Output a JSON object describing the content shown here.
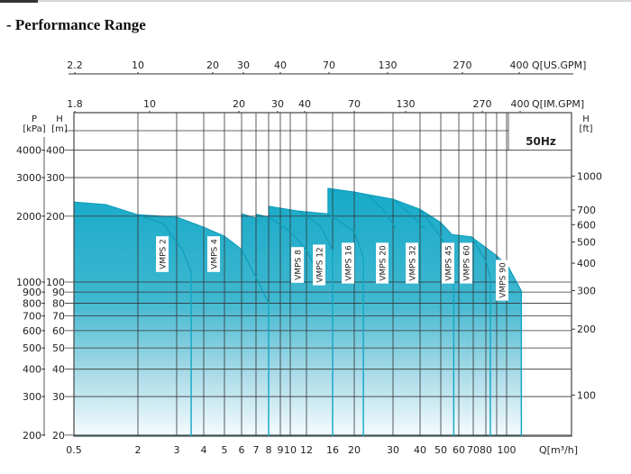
{
  "page": {
    "title": "- Performance Range"
  },
  "chart_data": {
    "type": "area",
    "title": "",
    "frequency_label": "50Hz",
    "x_axis": {
      "label": "Q[m³/h]",
      "scale": "log",
      "ticks": [
        0.5,
        2,
        3,
        4,
        5,
        6,
        7,
        8,
        9,
        10,
        12,
        16,
        20,
        30,
        40,
        50,
        60,
        70,
        80,
        100
      ],
      "grid_lines": [
        0.5,
        2,
        3,
        4,
        5,
        6,
        7,
        8,
        9,
        10,
        12,
        16,
        20,
        30,
        40,
        50,
        60,
        70,
        80,
        90,
        100
      ]
    },
    "x_axis_top_us": {
      "label": "Q[US.GPM]",
      "ticks": [
        "2.2",
        "10",
        "20",
        "30",
        "40",
        "70",
        "130",
        "270",
        "400"
      ]
    },
    "x_axis_top_im": {
      "label": "Q[IM.GPM]",
      "ticks": [
        "1.8",
        "10",
        "20",
        "30",
        "40",
        "70",
        "130",
        "270",
        "400"
      ]
    },
    "y_axis_h": {
      "label_top": "H",
      "label_unit": "[m]",
      "scale": "log",
      "ticks": [
        400,
        300,
        200,
        100,
        90,
        80,
        70,
        60,
        50,
        40,
        30,
        20
      ]
    },
    "y_axis_p": {
      "label_top": "P",
      "label_unit": "[kPa]",
      "ticks": [
        4000,
        3000,
        2000,
        1000,
        900,
        800,
        700,
        600,
        500,
        400,
        300,
        200
      ]
    },
    "y_axis_ft": {
      "label_top": "H",
      "label_unit": "[ft]",
      "ticks": [
        1000,
        700,
        600,
        500,
        400,
        300,
        200,
        100
      ]
    },
    "grid": true,
    "colors": {
      "fill_top": "#16aac8",
      "fill_bottom": "#f4fbfd",
      "curve": "#0e9ab9",
      "grid": "#333333"
    },
    "envelope": [
      [
        0.5,
        232
      ],
      [
        1,
        226
      ],
      [
        2,
        203
      ],
      [
        3,
        198
      ],
      [
        4,
        178
      ],
      [
        5,
        162
      ],
      [
        6,
        141
      ],
      [
        6,
        205
      ],
      [
        7,
        196
      ],
      [
        7,
        204
      ],
      [
        8,
        198
      ],
      [
        8,
        222
      ],
      [
        11,
        211
      ],
      [
        15.2,
        205
      ],
      [
        15.2,
        268
      ],
      [
        20,
        258
      ],
      [
        23,
        251
      ],
      [
        30,
        239
      ],
      [
        40,
        215
      ],
      [
        50,
        187
      ],
      [
        56,
        165
      ],
      [
        68.5,
        161
      ],
      [
        89,
        133
      ],
      [
        101,
        119
      ],
      [
        117,
        91
      ]
    ],
    "series": [
      {
        "name": "VMPS 2",
        "tail": [
          [
            2,
            203
          ],
          [
            2.6,
            185
          ],
          [
            3.2,
            140
          ],
          [
            3.5,
            111
          ]
        ],
        "max_q": 3.5
      },
      {
        "name": "VMPS 4",
        "tail": [
          [
            6,
            141
          ],
          [
            7,
            105
          ],
          [
            8,
            80
          ]
        ],
        "max_q": 8
      },
      {
        "name": "VMPS 8",
        "tail": [
          [
            8,
            198
          ],
          [
            10,
            170
          ],
          [
            12,
            140
          ],
          [
            13,
            120
          ]
        ],
        "max_q": 13
      },
      {
        "name": "VMPS 12",
        "tail": [
          [
            11,
            211
          ],
          [
            14,
            180
          ],
          [
            16,
            140
          ]
        ],
        "max_q": 16
      },
      {
        "name": "VMPS 16",
        "tail": [
          [
            15.2,
            205
          ],
          [
            20,
            170
          ],
          [
            22,
            130
          ]
        ],
        "max_q": 22
      },
      {
        "name": "VMPS 20",
        "tail": [
          [
            23,
            251
          ],
          [
            27,
            215
          ],
          [
            31,
            175
          ]
        ],
        "max_q": 31
      },
      {
        "name": "VMPS 32",
        "tail": [
          [
            30,
            239
          ],
          [
            36,
            205
          ],
          [
            42,
            175
          ]
        ],
        "max_q": 42
      },
      {
        "name": "VMPS 45",
        "tail": [
          [
            40,
            215
          ],
          [
            50,
            160
          ],
          [
            57,
            120
          ]
        ],
        "max_q": 57
      },
      {
        "name": "VMPS 60",
        "tail": [
          [
            68.5,
            161
          ],
          [
            80,
            125
          ],
          [
            84,
            105
          ]
        ],
        "max_q": 84
      },
      {
        "name": "VMPS 90",
        "tail": [
          [
            101,
            119
          ],
          [
            117,
            91
          ]
        ],
        "max_q": 117
      }
    ]
  }
}
